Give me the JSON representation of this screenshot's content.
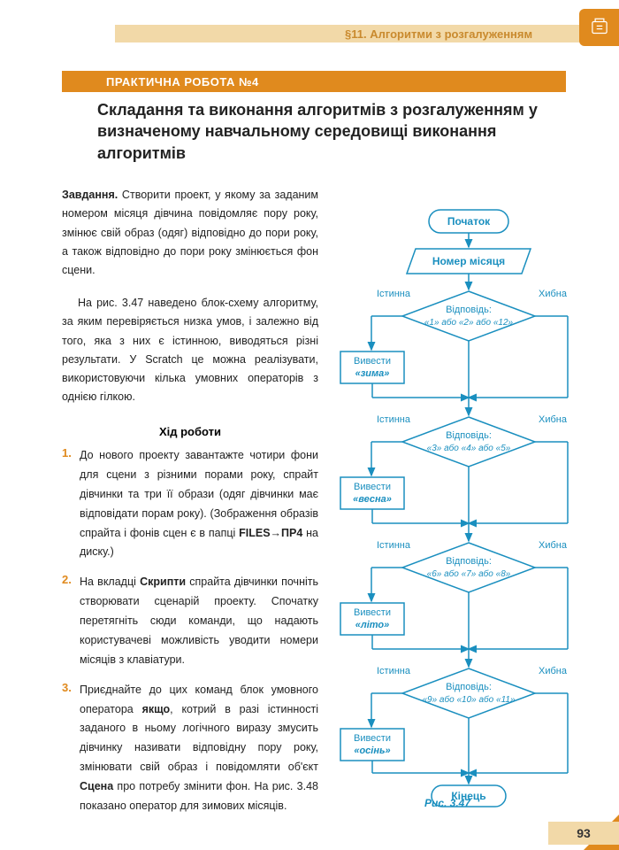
{
  "header": {
    "section": "§11. Алгоритми з розгалуженням",
    "praktychna": "ПРАКТИЧНА РОБОТА №4",
    "title": "Складання та виконання алгоритмів з розгалуженням у визначеному навчальному середовищі виконання алгоритмів"
  },
  "task": {
    "label": "Завдання.",
    "text": " Створити проект, у якому за заданим номером місяця дівчина повідомляє пору року, змінює свій образ (одяг) відповідно до пори року, а також відповідно до пори року змінюється фон сцени."
  },
  "para2": "На рис. 3.47 наведено блок-схему алгоритму, за яким перевіряється низка умов, і залежно від того, яка з них є істинною, виводяться різні результати. У Scratch це можна реалізувати, використовуючи кілька умовних операторів з однією гілкою.",
  "hid": "Хід роботи",
  "steps": [
    {
      "n": "1.",
      "html": "До нового проекту завантажте чотири фони для сцени з різними порами року, спрайт дівчинки та три її образи (одяг дівчинки має відповідати порам року). (Зображення образів спрайта і фонів сцен є в папці <b>FILES→ПР4</b> на диску.)"
    },
    {
      "n": "2.",
      "html": "На вкладці <b>Скрипти</b> спрайта дівчинки почніть створювати сценарій проекту. Спочатку перетягніть сюди команди, що надають користувачеві можливість уводити номери місяців з клавіатури."
    },
    {
      "n": "3.",
      "html": "Приєднайте до цих команд блок умовного оператора <b>якщо</b>, котрий в разі істинності заданого в ньому логічного виразу змусить дівчинку називати відповідну пору року, змінювати свій образ і повідомляти об'єкт <b>Сцена</b> про потребу змінити фон. На рис. 3.48 показано оператор для зимових місяців."
    }
  ],
  "flowchart": {
    "start": "Початок",
    "input": "Номер місяця",
    "true_label": "Істинна",
    "false_label": "Хибна",
    "cond_label": "Відповідь:",
    "conds": [
      "«1» або «2» або «12»",
      "«3» або «4» або «5»",
      "«6» або «7» або «8»",
      "«9» або «10» або «11»"
    ],
    "out_label": "Вивести",
    "outs": [
      "«зима»",
      "«весна»",
      "«літо»",
      "«осінь»"
    ],
    "end": "Кінець",
    "caption": "Рис. 3.47",
    "colors": {
      "stroke": "#1a8fbf",
      "text": "#1a8fbf",
      "accent": "#e08a1e",
      "header_bg": "#f2d9a8"
    }
  },
  "page": "93"
}
